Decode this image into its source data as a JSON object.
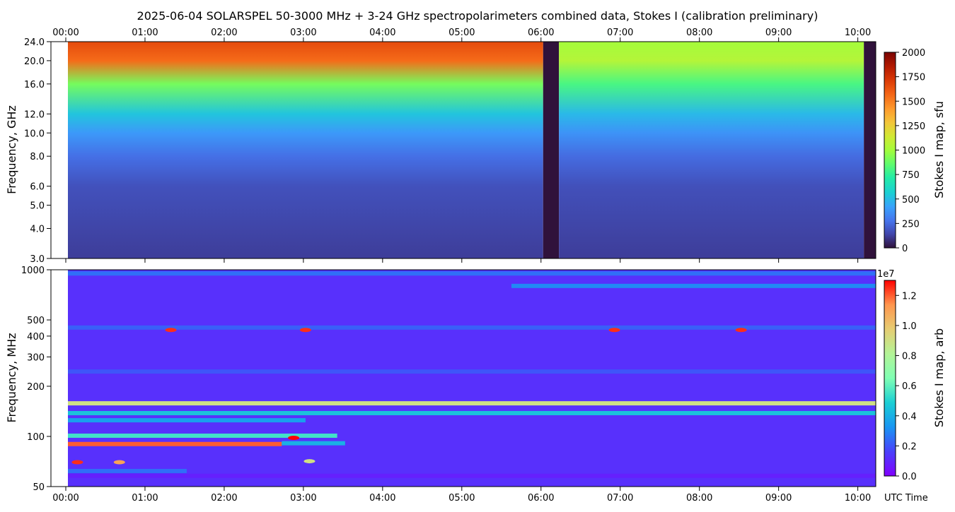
{
  "title": "2025-06-04  SOLARSPEL  50-3000 MHz  +  3-24 GHz  spectropolarimeters combined data,  Stokes I  (calibration preliminary)",
  "x_axis_label": "UTC Time",
  "chart_data": [
    {
      "type": "heatmap",
      "name": "top",
      "title": "2025-06-04  SOLARSPEL  50-3000 MHz  +  3-24 GHz  spectropolarimeters combined data,  Stokes I  (calibration preliminary)",
      "ylabel": "Frequency, GHz",
      "y_scale": "log",
      "ylim": [
        3.0,
        24.0
      ],
      "y_ticks": [
        "3.0",
        "4.0",
        "5.0",
        "6.0",
        "8.0",
        "10.0",
        "12.0",
        "16.0",
        "20.0",
        "24.0"
      ],
      "y_tick_values": [
        3,
        4,
        5,
        6,
        8,
        10,
        12,
        16,
        20,
        24
      ],
      "x_ticks": [
        "00:00",
        "01:00",
        "02:00",
        "03:00",
        "04:00",
        "05:00",
        "06:00",
        "07:00",
        "08:00",
        "09:00",
        "10:00"
      ],
      "x_range_hours": [
        0.0,
        10.2
      ],
      "x_ticks_position": "top",
      "data_gap_hours": [
        6.0,
        6.2
      ],
      "data_end_hours": 10.05,
      "colorbar": {
        "label": "Stokes I map, sfu",
        "colormap": "turbo",
        "range": [
          0,
          2000
        ],
        "ticks": [
          "0",
          "250",
          "500",
          "750",
          "1000",
          "1250",
          "1500",
          "1750",
          "2000"
        ],
        "tick_values": [
          0,
          250,
          500,
          750,
          1000,
          1250,
          1500,
          1750,
          2000
        ]
      },
      "flux_profile_sfu": [
        {
          "freq_ghz": 3.0,
          "before_gap": 120,
          "after_gap": 120
        },
        {
          "freq_ghz": 6.0,
          "before_gap": 180,
          "after_gap": 175
        },
        {
          "freq_ghz": 8.0,
          "before_gap": 270,
          "after_gap": 260
        },
        {
          "freq_ghz": 10.0,
          "before_gap": 400,
          "after_gap": 380
        },
        {
          "freq_ghz": 12.0,
          "before_gap": 540,
          "after_gap": 500
        },
        {
          "freq_ghz": 16.0,
          "before_gap": 900,
          "after_gap": 800
        },
        {
          "freq_ghz": 20.0,
          "before_gap": 1550,
          "after_gap": 1050
        },
        {
          "freq_ghz": 24.0,
          "before_gap": 1650,
          "after_gap": 1000
        }
      ]
    },
    {
      "type": "heatmap",
      "name": "bottom",
      "ylabel": "Frequency, MHz",
      "y_scale": "log",
      "ylim": [
        50,
        1000
      ],
      "y_ticks": [
        "50",
        "100",
        "200",
        "300",
        "400",
        "500",
        "1000"
      ],
      "y_tick_values": [
        50,
        100,
        200,
        300,
        400,
        500,
        1000
      ],
      "x_ticks": [
        "00:00",
        "01:00",
        "02:00",
        "03:00",
        "04:00",
        "05:00",
        "06:00",
        "07:00",
        "08:00",
        "09:00",
        "10:00"
      ],
      "x_range_hours": [
        0.0,
        10.2
      ],
      "colorbar": {
        "label": "Stokes I map, arb",
        "exponent_label": "1e7",
        "colormap": "rainbow",
        "range": [
          0,
          1.3
        ],
        "ticks": [
          "0.0",
          "0.2",
          "0.4",
          "0.6",
          "0.8",
          "1.0",
          "1.2"
        ],
        "tick_values": [
          0.0,
          0.2,
          0.4,
          0.6,
          0.8,
          1.0,
          1.2
        ]
      },
      "background_value": 0.12,
      "bands": [
        {
          "freq_mhz": 58,
          "value": 0.08,
          "t_start": 0.0,
          "t_end": 10.2
        },
        {
          "freq_mhz": 62,
          "value": 0.25,
          "t_start": 0.0,
          "t_end": 1.5
        },
        {
          "freq_mhz": 90,
          "value": 1.2,
          "t_start": 0.0,
          "t_end": 2.7
        },
        {
          "freq_mhz": 91,
          "value": 0.4,
          "t_start": 2.7,
          "t_end": 3.5
        },
        {
          "freq_mhz": 101,
          "value": 0.55,
          "t_start": 0.0,
          "t_end": 3.4
        },
        {
          "freq_mhz": 125,
          "value": 0.35,
          "t_start": 0.0,
          "t_end": 3.0
        },
        {
          "freq_mhz": 138,
          "value": 0.45,
          "t_start": 0.0,
          "t_end": 10.2
        },
        {
          "freq_mhz": 158,
          "value": 0.9,
          "t_start": 0.0,
          "t_end": 10.2
        },
        {
          "freq_mhz": 245,
          "value": 0.2,
          "t_start": 0.0,
          "t_end": 10.2
        },
        {
          "freq_mhz": 450,
          "value": 0.22,
          "t_start": 0.0,
          "t_end": 10.2
        },
        {
          "freq_mhz": 800,
          "value": 0.3,
          "t_start": 5.6,
          "t_end": 10.2
        },
        {
          "freq_mhz": 950,
          "value": 0.25,
          "t_start": 0.0,
          "t_end": 10.2
        }
      ],
      "bursts": [
        {
          "t_hours": 0.12,
          "freq_mhz": 70,
          "value": 1.25
        },
        {
          "t_hours": 0.65,
          "freq_mhz": 70,
          "value": 1.1
        },
        {
          "t_hours": 2.85,
          "freq_mhz": 98,
          "value": 1.3
        },
        {
          "t_hours": 3.05,
          "freq_mhz": 71,
          "value": 0.9
        },
        {
          "t_hours": 1.3,
          "freq_mhz": 435,
          "value": 1.25
        },
        {
          "t_hours": 3.0,
          "freq_mhz": 435,
          "value": 1.25
        },
        {
          "t_hours": 6.9,
          "freq_mhz": 435,
          "value": 1.25
        },
        {
          "t_hours": 8.5,
          "freq_mhz": 435,
          "value": 1.25
        }
      ]
    }
  ]
}
